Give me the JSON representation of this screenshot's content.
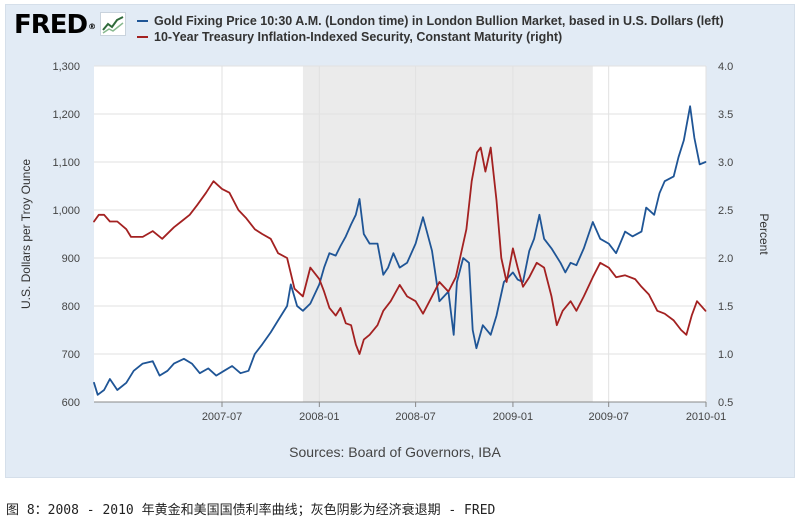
{
  "brand": {
    "logo_text": "FRED",
    "registered_mark": "®"
  },
  "legend": {
    "items": [
      {
        "label": "Gold Fixing Price 10:30 A.M. (London time) in London Bullion Market, based in U.S. Dollars (left)",
        "color": "#1f5596"
      },
      {
        "label": "10-Year Treasury Inflation-Indexed Security, Constant Maturity (right)",
        "color": "#a32121"
      }
    ]
  },
  "source_text": "Sources: Board of Governors, IBA",
  "caption": "图 8：2008 - 2010 年黄金和美国国债利率曲线；灰色阴影为经济衰退期 - FRED",
  "chart_data": {
    "type": "line",
    "x_range": [
      "2006-11-01",
      "2010-01-01"
    ],
    "x_ticks": [
      "2007-07",
      "2008-01",
      "2008-07",
      "2009-01",
      "2009-07",
      "2010-01"
    ],
    "recession": {
      "start": "2007-12-01",
      "end": "2009-06-01",
      "color": "#ebebeb"
    },
    "grid": true,
    "left_axis": {
      "label": "U.S. Dollars per Troy Ounce",
      "range": [
        600,
        1300
      ],
      "ticks": [
        "600",
        "700",
        "800",
        "900",
        "1,000",
        "1,100",
        "1,200",
        "1,300"
      ],
      "tick_values": [
        600,
        700,
        800,
        900,
        1000,
        1100,
        1200,
        1300
      ]
    },
    "right_axis": {
      "label": "Percent",
      "range": [
        0.5,
        4.0
      ],
      "ticks": [
        "0.5",
        "1.0",
        "1.5",
        "2.0",
        "2.5",
        "3.0",
        "3.5",
        "4.0"
      ],
      "tick_values": [
        0.5,
        1.0,
        1.5,
        2.0,
        2.5,
        3.0,
        3.5,
        4.0
      ]
    },
    "series": [
      {
        "name": "Gold Fixing Price 10:30 A.M. (London time) in London Bullion Market, based in U.S. Dollars (left)",
        "axis": "left",
        "color": "#1f5596",
        "points": [
          [
            "2006-11-01",
            640
          ],
          [
            "2006-11-08",
            615
          ],
          [
            "2006-11-20",
            625
          ],
          [
            "2006-12-01",
            648
          ],
          [
            "2006-12-15",
            625
          ],
          [
            "2007-01-01",
            640
          ],
          [
            "2007-01-15",
            665
          ],
          [
            "2007-02-01",
            680
          ],
          [
            "2007-02-20",
            685
          ],
          [
            "2007-03-05",
            655
          ],
          [
            "2007-03-20",
            665
          ],
          [
            "2007-04-01",
            680
          ],
          [
            "2007-04-20",
            690
          ],
          [
            "2007-05-05",
            680
          ],
          [
            "2007-05-20",
            660
          ],
          [
            "2007-06-05",
            670
          ],
          [
            "2007-06-20",
            655
          ],
          [
            "2007-07-05",
            665
          ],
          [
            "2007-07-20",
            675
          ],
          [
            "2007-08-05",
            660
          ],
          [
            "2007-08-20",
            665
          ],
          [
            "2007-09-01",
            700
          ],
          [
            "2007-09-15",
            720
          ],
          [
            "2007-10-01",
            745
          ],
          [
            "2007-10-15",
            770
          ],
          [
            "2007-11-01",
            800
          ],
          [
            "2007-11-08",
            845
          ],
          [
            "2007-11-20",
            800
          ],
          [
            "2007-12-01",
            790
          ],
          [
            "2007-12-15",
            805
          ],
          [
            "2008-01-01",
            845
          ],
          [
            "2008-01-10",
            880
          ],
          [
            "2008-01-20",
            910
          ],
          [
            "2008-02-01",
            905
          ],
          [
            "2008-02-10",
            925
          ],
          [
            "2008-02-20",
            945
          ],
          [
            "2008-03-01",
            970
          ],
          [
            "2008-03-10",
            990
          ],
          [
            "2008-03-17",
            1023
          ],
          [
            "2008-03-25",
            950
          ],
          [
            "2008-04-05",
            930
          ],
          [
            "2008-04-20",
            930
          ],
          [
            "2008-05-01",
            865
          ],
          [
            "2008-05-10",
            880
          ],
          [
            "2008-05-20",
            910
          ],
          [
            "2008-06-01",
            880
          ],
          [
            "2008-06-15",
            890
          ],
          [
            "2008-07-01",
            930
          ],
          [
            "2008-07-15",
            985
          ],
          [
            "2008-08-01",
            915
          ],
          [
            "2008-08-15",
            810
          ],
          [
            "2008-09-01",
            830
          ],
          [
            "2008-09-11",
            740
          ],
          [
            "2008-09-17",
            850
          ],
          [
            "2008-09-29",
            900
          ],
          [
            "2008-10-10",
            890
          ],
          [
            "2008-10-17",
            750
          ],
          [
            "2008-10-24",
            712
          ],
          [
            "2008-11-05",
            760
          ],
          [
            "2008-11-20",
            740
          ],
          [
            "2008-12-01",
            780
          ],
          [
            "2008-12-15",
            850
          ],
          [
            "2009-01-01",
            870
          ],
          [
            "2009-01-10",
            855
          ],
          [
            "2009-01-20",
            850
          ],
          [
            "2009-02-01",
            915
          ],
          [
            "2009-02-10",
            940
          ],
          [
            "2009-02-20",
            990
          ],
          [
            "2009-03-01",
            940
          ],
          [
            "2009-03-15",
            920
          ],
          [
            "2009-04-01",
            890
          ],
          [
            "2009-04-10",
            870
          ],
          [
            "2009-04-20",
            890
          ],
          [
            "2009-05-01",
            885
          ],
          [
            "2009-05-15",
            920
          ],
          [
            "2009-06-01",
            975
          ],
          [
            "2009-06-15",
            940
          ],
          [
            "2009-07-01",
            930
          ],
          [
            "2009-07-15",
            910
          ],
          [
            "2009-08-01",
            955
          ],
          [
            "2009-08-15",
            945
          ],
          [
            "2009-09-01",
            955
          ],
          [
            "2009-09-10",
            1005
          ],
          [
            "2009-09-25",
            990
          ],
          [
            "2009-10-05",
            1035
          ],
          [
            "2009-10-15",
            1060
          ],
          [
            "2009-11-01",
            1070
          ],
          [
            "2009-11-10",
            1110
          ],
          [
            "2009-11-20",
            1145
          ],
          [
            "2009-12-02",
            1216
          ],
          [
            "2009-12-10",
            1150
          ],
          [
            "2009-12-20",
            1095
          ],
          [
            "2009-12-31",
            1100
          ]
        ]
      },
      {
        "name": "10-Year Treasury Inflation-Indexed Security, Constant Maturity (right)",
        "axis": "right",
        "color": "#a32121",
        "points": [
          [
            "2006-11-01",
            2.38
          ],
          [
            "2006-11-10",
            2.45
          ],
          [
            "2006-11-20",
            2.45
          ],
          [
            "2006-12-01",
            2.38
          ],
          [
            "2006-12-15",
            2.38
          ],
          [
            "2007-01-01",
            2.3
          ],
          [
            "2007-01-10",
            2.22
          ],
          [
            "2007-02-01",
            2.22
          ],
          [
            "2007-02-20",
            2.28
          ],
          [
            "2007-03-10",
            2.2
          ],
          [
            "2007-04-01",
            2.32
          ],
          [
            "2007-04-15",
            2.38
          ],
          [
            "2007-05-01",
            2.45
          ],
          [
            "2007-05-15",
            2.55
          ],
          [
            "2007-06-01",
            2.68
          ],
          [
            "2007-06-15",
            2.8
          ],
          [
            "2007-07-01",
            2.72
          ],
          [
            "2007-07-15",
            2.68
          ],
          [
            "2007-08-01",
            2.5
          ],
          [
            "2007-08-15",
            2.42
          ],
          [
            "2007-09-01",
            2.3
          ],
          [
            "2007-09-15",
            2.25
          ],
          [
            "2007-10-01",
            2.2
          ],
          [
            "2007-10-15",
            2.05
          ],
          [
            "2007-11-01",
            2.0
          ],
          [
            "2007-11-15",
            1.68
          ],
          [
            "2007-12-01",
            1.6
          ],
          [
            "2007-12-15",
            1.9
          ],
          [
            "2008-01-01",
            1.78
          ],
          [
            "2008-01-10",
            1.65
          ],
          [
            "2008-01-20",
            1.48
          ],
          [
            "2008-02-01",
            1.4
          ],
          [
            "2008-02-10",
            1.48
          ],
          [
            "2008-02-20",
            1.32
          ],
          [
            "2008-03-01",
            1.3
          ],
          [
            "2008-03-10",
            1.1
          ],
          [
            "2008-03-17",
            1.0
          ],
          [
            "2008-03-25",
            1.15
          ],
          [
            "2008-04-05",
            1.2
          ],
          [
            "2008-04-20",
            1.3
          ],
          [
            "2008-05-01",
            1.45
          ],
          [
            "2008-05-15",
            1.55
          ],
          [
            "2008-06-01",
            1.72
          ],
          [
            "2008-06-15",
            1.6
          ],
          [
            "2008-07-01",
            1.55
          ],
          [
            "2008-07-15",
            1.42
          ],
          [
            "2008-08-01",
            1.6
          ],
          [
            "2008-08-15",
            1.75
          ],
          [
            "2008-09-01",
            1.65
          ],
          [
            "2008-09-15",
            1.8
          ],
          [
            "2008-09-25",
            2.05
          ],
          [
            "2008-10-05",
            2.3
          ],
          [
            "2008-10-15",
            2.8
          ],
          [
            "2008-10-25",
            3.1
          ],
          [
            "2008-11-01",
            3.15
          ],
          [
            "2008-11-10",
            2.9
          ],
          [
            "2008-11-20",
            3.15
          ],
          [
            "2008-12-01",
            2.6
          ],
          [
            "2008-12-10",
            2.0
          ],
          [
            "2008-12-20",
            1.75
          ],
          [
            "2009-01-01",
            2.1
          ],
          [
            "2009-01-10",
            1.9
          ],
          [
            "2009-01-20",
            1.7
          ],
          [
            "2009-02-01",
            1.8
          ],
          [
            "2009-02-15",
            1.95
          ],
          [
            "2009-03-01",
            1.9
          ],
          [
            "2009-03-15",
            1.6
          ],
          [
            "2009-03-25",
            1.3
          ],
          [
            "2009-04-05",
            1.45
          ],
          [
            "2009-04-20",
            1.55
          ],
          [
            "2009-05-01",
            1.45
          ],
          [
            "2009-05-15",
            1.6
          ],
          [
            "2009-06-01",
            1.8
          ],
          [
            "2009-06-15",
            1.95
          ],
          [
            "2009-07-01",
            1.9
          ],
          [
            "2009-07-15",
            1.8
          ],
          [
            "2009-08-01",
            1.82
          ],
          [
            "2009-08-20",
            1.78
          ],
          [
            "2009-09-01",
            1.7
          ],
          [
            "2009-09-15",
            1.62
          ],
          [
            "2009-10-01",
            1.45
          ],
          [
            "2009-10-15",
            1.42
          ],
          [
            "2009-11-01",
            1.35
          ],
          [
            "2009-11-15",
            1.25
          ],
          [
            "2009-11-25",
            1.2
          ],
          [
            "2009-12-05",
            1.4
          ],
          [
            "2009-12-15",
            1.55
          ],
          [
            "2009-12-31",
            1.45
          ]
        ]
      }
    ]
  }
}
